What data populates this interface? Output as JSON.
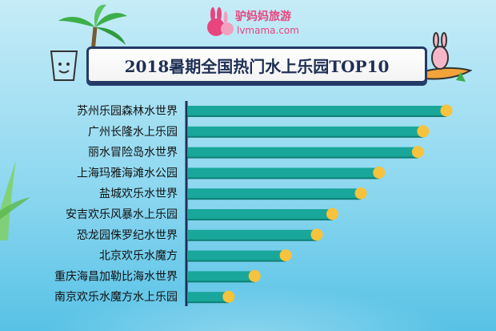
{
  "brand": {
    "name": "驴妈妈旅游",
    "url": "lvmama.com"
  },
  "colors": {
    "bar": "#18a79a",
    "bar_shadow": "#0f7f75",
    "dot": "#f7c23c",
    "axis": "#1e2f55",
    "brand": "#e8457e"
  },
  "icons": [
    "palm-tree-icon",
    "cup-icon",
    "surfer-icon",
    "rabbit-logo-icon",
    "plant-icon"
  ],
  "chart_data": {
    "type": "bar",
    "orientation": "horizontal",
    "title": "2018暑期全国热门水上乐园TOP10",
    "categories": [
      "苏州乐园森林水世界",
      "广州长隆水上乐园",
      "丽水冒险岛水世界",
      "上海玛雅海滩水公园",
      "盐城欢乐水世界",
      "安吉欢乐风暴水上乐园",
      "恐龙园侏罗纪水世界",
      "北京欢乐水魔方",
      "重庆海昌加勒比海水世界",
      "南京欢乐水魔方水上乐园"
    ],
    "values": [
      100,
      91,
      89,
      74,
      67,
      56,
      50,
      38,
      26,
      16
    ],
    "xlim": [
      0,
      100
    ],
    "xlabel": "",
    "ylabel": "",
    "grid": false,
    "legend": "none"
  }
}
